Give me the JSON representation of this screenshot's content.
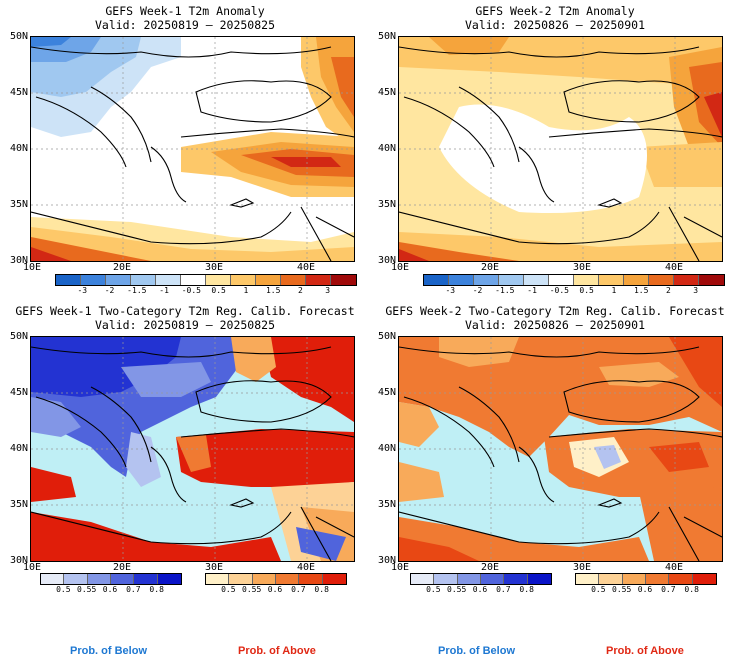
{
  "panels": {
    "tl": {
      "title": "GEFS Week-1 T2m Anomaly",
      "valid": "Valid: 20250819 – 20250825"
    },
    "tr": {
      "title": "GEFS Week-2 T2m Anomaly",
      "valid": "Valid: 20250826 – 20250901"
    },
    "bl": {
      "title": "GEFS Week-1 Two-Category T2m Reg. Calib. Forecast",
      "valid": "Valid: 20250819 – 20250825"
    },
    "br": {
      "title": "GEFS Week-2 Two-Category T2m Reg. Calib. Forecast",
      "valid": "Valid: 20250826 – 20250901"
    }
  },
  "axes": {
    "lat_labels": [
      "50N",
      "45N",
      "40N",
      "35N",
      "30N"
    ],
    "lon_labels": [
      "10E",
      "20E",
      "30E",
      "40E"
    ]
  },
  "anomaly_colorbar": {
    "ticks": [
      "-3",
      "-2",
      "-1.5",
      "-1",
      "-0.5",
      "0.5",
      "1",
      "1.5",
      "2",
      "3"
    ],
    "colors": [
      "#1a64c8",
      "#3c82dc",
      "#6ea5e8",
      "#a0c8f0",
      "#cde3f7",
      "#ffffff",
      "#ffe6a0",
      "#fdc869",
      "#f5a43c",
      "#e86a1e",
      "#d22814",
      "#a00a0a"
    ]
  },
  "prob_colorbar": {
    "below_ticks": [
      "0.5",
      "0.55",
      "0.6",
      "0.7",
      "0.8"
    ],
    "above_ticks": [
      "0.5",
      "0.55",
      "0.6",
      "0.7",
      "0.8"
    ],
    "below_colors": [
      "#e6ebf7",
      "#b4c3f0",
      "#8296e6",
      "#5064dc",
      "#2333d2",
      "#0a14c8"
    ],
    "above_colors": [
      "#fff0c8",
      "#fdd296",
      "#f8aa5a",
      "#f07a32",
      "#e84814",
      "#e01e0a"
    ]
  },
  "prob_labels": {
    "below": "Prob. of Below",
    "above": "Prob. of Above"
  },
  "colors": {
    "below_label": "#1e78d2",
    "above_label": "#e02814",
    "sea": "#bfeff5"
  }
}
